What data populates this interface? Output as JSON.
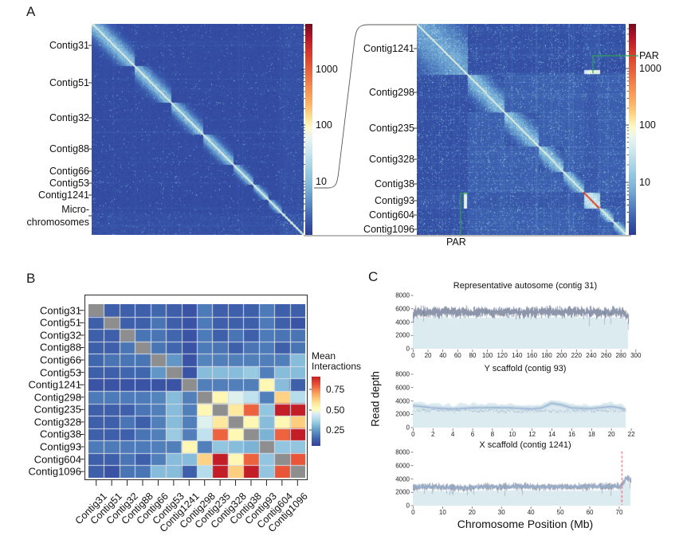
{
  "figure": {
    "panel_a_label": "A",
    "panel_b_label": "B",
    "panel_c_label": "C",
    "par_label_right": "PAR",
    "par_label_bottom": "PAR",
    "legend_title_line1": "Mean",
    "legend_title_line2": "Interactions",
    "c_ylabel": "Read depth",
    "c_xlabel": "Chromosome Position (Mb)"
  },
  "chart_data": [
    {
      "id": "hic_overview",
      "type": "heatmap",
      "description": "Hi-C contact map of whole genome assembly, log-scale interaction counts",
      "rows": [
        "Contig31",
        "Contig51",
        "Contig32",
        "Contig88",
        "Contig66",
        "Contig53",
        "Contig1241",
        "Micro-chromosomes"
      ],
      "row_label_lines": [
        "Contig31",
        "Contig51",
        "Contig32",
        "Contig88",
        "Contig66",
        "Contig53",
        "Contig1241",
        "Micro-",
        "chromosomes"
      ],
      "label_y": [
        57,
        104,
        148,
        187,
        215,
        230,
        245,
        263,
        279
      ],
      "tick_y": [
        57,
        104,
        148,
        187,
        215,
        230,
        245,
        271
      ],
      "block_fractions": [
        0.201,
        0.171,
        0.152,
        0.144,
        0.095,
        0.072,
        0.065,
        0.1
      ],
      "scale": "log",
      "colorbar_ticks": [
        "1000",
        "100",
        "10"
      ],
      "colorbar_tick_y": [
        87,
        157,
        228
      ]
    },
    {
      "id": "hic_zoom",
      "type": "heatmap",
      "description": "Hi-C contact map zoom of sex chromosomes and fused contigs; PAR marked",
      "rows": [
        "Contig1241",
        "Contig298",
        "Contig235",
        "Contig328",
        "Contig38",
        "Contig93",
        "Contig604",
        "Contig1096"
      ],
      "label_y": [
        61,
        116,
        161,
        200,
        231,
        252,
        270,
        288
      ],
      "block_fractions": [
        0.24,
        0.177,
        0.164,
        0.12,
        0.1,
        0.076,
        0.063,
        0.057
      ],
      "scale": "log",
      "colorbar_ticks": [
        "1000",
        "100",
        "10"
      ],
      "colorbar_tick_y": [
        86,
        157,
        229
      ],
      "annotations": [
        "PAR"
      ]
    },
    {
      "id": "mean_interactions",
      "type": "heatmap",
      "title": "",
      "categories": [
        "Contig31",
        "Contig51",
        "Contig32",
        "Contig88",
        "Contig66",
        "Contig53",
        "Contig1241",
        "Contig298",
        "Contig235",
        "Contig328",
        "Contig38",
        "Contig93",
        "Contig604",
        "Contig1096"
      ],
      "matrix": [
        [
          null,
          0.1,
          0.1,
          0.1,
          0.12,
          0.1,
          0.07,
          0.16,
          0.1,
          0.1,
          0.1,
          0.16,
          0.1,
          0.1
        ],
        [
          0.1,
          null,
          0.1,
          0.1,
          0.15,
          0.1,
          0.07,
          0.16,
          0.1,
          0.1,
          0.1,
          0.16,
          0.1,
          0.07
        ],
        [
          0.1,
          0.1,
          null,
          0.15,
          0.15,
          0.12,
          0.07,
          0.16,
          0.1,
          0.15,
          0.1,
          0.16,
          0.15,
          0.15
        ],
        [
          0.1,
          0.1,
          0.15,
          null,
          0.15,
          0.12,
          0.07,
          0.16,
          0.15,
          0.1,
          0.15,
          0.16,
          0.1,
          0.15
        ],
        [
          0.12,
          0.15,
          0.15,
          0.15,
          null,
          0.22,
          0.07,
          0.18,
          0.17,
          0.17,
          0.17,
          0.17,
          0.17,
          0.3
        ],
        [
          0.1,
          0.1,
          0.12,
          0.12,
          0.22,
          null,
          0.07,
          0.3,
          0.3,
          0.3,
          0.33,
          0.17,
          0.3,
          0.3
        ],
        [
          0.07,
          0.07,
          0.07,
          0.07,
          0.07,
          0.07,
          null,
          0.17,
          0.17,
          0.17,
          0.17,
          0.52,
          0.3,
          0.1
        ],
        [
          0.16,
          0.16,
          0.16,
          0.16,
          0.18,
          0.3,
          0.17,
          null,
          0.52,
          0.45,
          0.4,
          0.17,
          0.62,
          0.38
        ],
        [
          0.1,
          0.1,
          0.1,
          0.15,
          0.17,
          0.3,
          0.17,
          0.52,
          null,
          0.57,
          0.8,
          0.32,
          0.93,
          0.93
        ],
        [
          0.1,
          0.1,
          0.15,
          0.1,
          0.17,
          0.3,
          0.17,
          0.45,
          0.57,
          null,
          0.52,
          0.3,
          0.52,
          0.63
        ],
        [
          0.1,
          0.1,
          0.1,
          0.15,
          0.17,
          0.33,
          0.17,
          0.4,
          0.8,
          0.52,
          null,
          0.28,
          0.8,
          0.93
        ],
        [
          0.16,
          0.16,
          0.16,
          0.16,
          0.17,
          0.17,
          0.52,
          0.17,
          0.32,
          0.3,
          0.28,
          null,
          0.32,
          0.32
        ],
        [
          0.1,
          0.1,
          0.15,
          0.1,
          0.17,
          0.3,
          0.3,
          0.62,
          0.93,
          0.52,
          0.8,
          0.32,
          null,
          0.82
        ],
        [
          0.1,
          0.07,
          0.15,
          0.15,
          0.3,
          0.3,
          0.1,
          0.38,
          0.93,
          0.63,
          0.93,
          0.32,
          0.82,
          null
        ]
      ],
      "legend_title": "Mean Interactions",
      "legend_ticks": [
        "0.75",
        "0.50",
        "0.25"
      ],
      "legend_tick_y": [
        489,
        515,
        540
      ],
      "legend_range": [
        0.03,
        0.92
      ],
      "diagonal": "masked-gray"
    },
    {
      "id": "autosome_depth",
      "type": "scatter",
      "title": "Representative autosome (contig 31)",
      "xlim": [
        0,
        302
      ],
      "ylim": [
        0,
        8000
      ],
      "xticks": [
        0,
        20,
        40,
        60,
        80,
        100,
        120,
        140,
        160,
        180,
        200,
        220,
        240,
        260,
        280,
        300
      ],
      "yticks": [
        0,
        2000,
        4000,
        6000,
        8000
      ],
      "x_extent": 290,
      "mean_depth": 5500,
      "band_halfwidth": 600
    },
    {
      "id": "y_scaffold_depth",
      "type": "scatter",
      "title": "Y scaffold (contig 93)",
      "xlim": [
        0,
        22.6
      ],
      "ylim": [
        0,
        8000
      ],
      "xticks": [
        0,
        2,
        4,
        6,
        8,
        10,
        12,
        14,
        16,
        18,
        20,
        22
      ],
      "yticks": [
        0,
        2000,
        4000,
        6000,
        8000
      ],
      "x_extent": 21.5,
      "mean_depth": 2900,
      "trend": [
        [
          0,
          3300
        ],
        [
          2,
          2950
        ],
        [
          4,
          2800
        ],
        [
          6,
          2950
        ],
        [
          8,
          3000
        ],
        [
          10,
          2950
        ],
        [
          12,
          2800
        ],
        [
          13,
          2950
        ],
        [
          14,
          3650
        ],
        [
          15,
          3400
        ],
        [
          16,
          2950
        ],
        [
          18,
          2850
        ],
        [
          19,
          3000
        ],
        [
          20,
          3150
        ],
        [
          21,
          2950
        ],
        [
          21.5,
          2650
        ]
      ]
    },
    {
      "id": "x_scaffold_depth",
      "type": "scatter",
      "title": "X scaffold (contig 1241)",
      "xlim": [
        0,
        76
      ],
      "ylim": [
        0,
        8000
      ],
      "xticks": [
        0,
        10,
        20,
        30,
        40,
        50,
        60,
        70
      ],
      "yticks": [
        0,
        2000,
        4000,
        6000,
        8000
      ],
      "x_extent": 73.8,
      "mean_depth": 2850,
      "par_boundary_x": 71,
      "trend": [
        [
          0,
          2800
        ],
        [
          5,
          2850
        ],
        [
          10,
          2800
        ],
        [
          15,
          2700
        ],
        [
          17,
          2550
        ],
        [
          20,
          2800
        ],
        [
          25,
          2850
        ],
        [
          30,
          2800
        ],
        [
          35,
          2900
        ],
        [
          40,
          2850
        ],
        [
          45,
          2800
        ],
        [
          50,
          2850
        ],
        [
          55,
          2800
        ],
        [
          60,
          2900
        ],
        [
          65,
          2850
        ],
        [
          69,
          2900
        ],
        [
          71,
          3000
        ],
        [
          72,
          3900
        ],
        [
          73,
          4150
        ],
        [
          73.8,
          3850
        ]
      ]
    }
  ],
  "colors": {
    "annotation_green": "#2e9e4f",
    "dashed_red": "#e04545",
    "area_fill": "#dcebf0",
    "trend_line": "#8fa9cc",
    "depth_band": "#1c2e55",
    "diagonal_gray": "#8e8e8e",
    "background": "#ffffff"
  }
}
